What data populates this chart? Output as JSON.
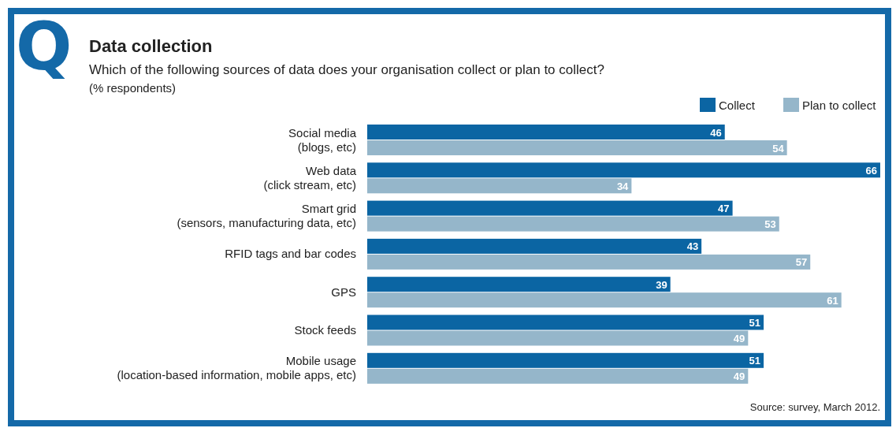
{
  "chart_data": {
    "type": "bar",
    "orientation": "horizontal",
    "title": "Data collection",
    "subtitle": "Which of the following sources of data does your organisation collect or plan to collect?",
    "xlabel": "(% respondents)",
    "annotations": [
      "Q",
      "Source: survey, March 2012."
    ],
    "categories": [
      "Social media\n(blogs, etc)",
      "Web data\n(click stream, etc)",
      "Smart grid\n(sensors, manufacturing data, etc)",
      "RFID tags and bar codes",
      "GPS",
      "Stock feeds",
      "Mobile usage\n(location-based information, mobile apps, etc)"
    ],
    "series": [
      {
        "name": "Collect",
        "color": "#0b65a3",
        "values": [
          46,
          66,
          47,
          43,
          39,
          51,
          51
        ]
      },
      {
        "name": "Plan to collect",
        "color": "#95b6ca",
        "values": [
          54,
          34,
          53,
          57,
          61,
          49,
          49
        ]
      }
    ],
    "data_labels": true,
    "legend": "top right"
  }
}
